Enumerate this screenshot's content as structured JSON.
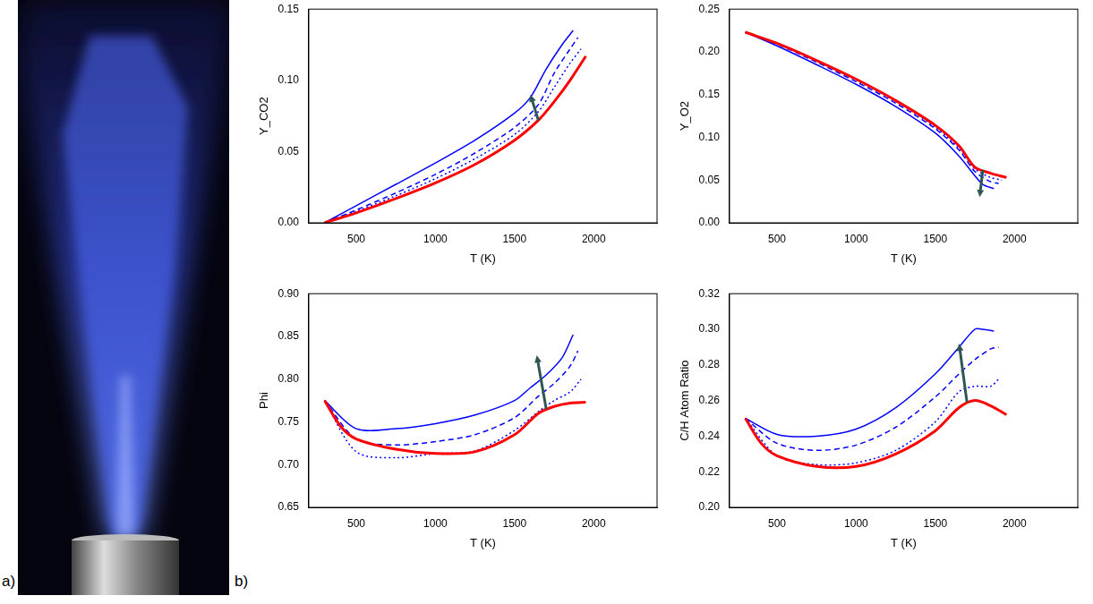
{
  "panel_labels": [
    "a)",
    "b)"
  ],
  "chart_data": [
    {
      "type": "line",
      "x_label": "T (K)",
      "y_label": "Y_CO2",
      "xlim": [
        200,
        2400
      ],
      "xticks": [
        500,
        1000,
        1500,
        2000
      ],
      "ylim": [
        0,
        0.15
      ],
      "yticks": [
        {
          "value": 0,
          "label": "0.00"
        },
        {
          "value": 0.05,
          "label": "0.05"
        },
        {
          "value": 0.1,
          "label": "0.10"
        },
        {
          "value": 0.15,
          "label": "0.15"
        }
      ],
      "grid": false,
      "series": [
        {
          "color": "#ff0000",
          "line_style": "solid",
          "x": [
            300,
            500,
            750,
            1000,
            1250,
            1500,
            1650,
            1750,
            1850,
            1950
          ],
          "values": [
            0.0,
            0.007,
            0.017,
            0.028,
            0.041,
            0.058,
            0.072,
            0.085,
            0.1,
            0.117
          ]
        },
        {
          "color": "#0000ff",
          "line_style": "solid",
          "x": [
            300,
            500,
            750,
            1000,
            1250,
            1500,
            1600,
            1700,
            1800,
            1870
          ],
          "values": [
            0.0,
            0.012,
            0.027,
            0.042,
            0.058,
            0.077,
            0.088,
            0.108,
            0.125,
            0.135
          ]
        },
        {
          "color": "#0000ff",
          "line_style": "dashed",
          "x": [
            300,
            500,
            750,
            1000,
            1250,
            1500,
            1650,
            1750,
            1850,
            1900
          ],
          "values": [
            0.0,
            0.009,
            0.021,
            0.034,
            0.049,
            0.067,
            0.083,
            0.105,
            0.122,
            0.13
          ]
        },
        {
          "color": "#0000ff",
          "line_style": "dotted",
          "x": [
            300,
            500,
            750,
            1000,
            1250,
            1500,
            1650,
            1750,
            1850,
            1920
          ],
          "values": [
            0.0,
            0.008,
            0.019,
            0.031,
            0.045,
            0.062,
            0.078,
            0.095,
            0.112,
            0.122
          ]
        }
      ],
      "arrow": {
        "from": [
          1650,
          0.072
        ],
        "to": [
          1600,
          0.09
        ]
      }
    },
    {
      "type": "line",
      "x_label": "T (K)",
      "y_label": "Y_O2",
      "xlim": [
        200,
        2400
      ],
      "xticks": [
        500,
        1000,
        1500,
        2000
      ],
      "ylim": [
        0,
        0.25
      ],
      "yticks": [
        {
          "value": 0,
          "label": "0.00"
        },
        {
          "value": 0.05,
          "label": "0.05"
        },
        {
          "value": 0.1,
          "label": "0.10"
        },
        {
          "value": 0.15,
          "label": "0.15"
        },
        {
          "value": 0.2,
          "label": "0.20"
        },
        {
          "value": 0.25,
          "label": "0.25"
        }
      ],
      "grid": false,
      "series": [
        {
          "color": "#ff0000",
          "line_style": "solid",
          "x": [
            300,
            500,
            750,
            1000,
            1250,
            1500,
            1650,
            1750,
            1850,
            1950
          ],
          "values": [
            0.223,
            0.21,
            0.19,
            0.168,
            0.143,
            0.114,
            0.09,
            0.065,
            0.058,
            0.053
          ]
        },
        {
          "color": "#0000ff",
          "line_style": "solid",
          "x": [
            300,
            500,
            750,
            1000,
            1250,
            1500,
            1650,
            1750,
            1800,
            1870
          ],
          "values": [
            0.223,
            0.207,
            0.185,
            0.162,
            0.136,
            0.105,
            0.078,
            0.055,
            0.045,
            0.04
          ]
        },
        {
          "color": "#0000ff",
          "line_style": "dashed",
          "x": [
            300,
            500,
            750,
            1000,
            1250,
            1500,
            1650,
            1750,
            1850,
            1900
          ],
          "values": [
            0.223,
            0.209,
            0.188,
            0.165,
            0.14,
            0.11,
            0.085,
            0.06,
            0.048,
            0.046
          ]
        },
        {
          "color": "#0000ff",
          "line_style": "dotted",
          "x": [
            300,
            500,
            750,
            1000,
            1250,
            1500,
            1650,
            1750,
            1850,
            1920
          ],
          "values": [
            0.223,
            0.21,
            0.19,
            0.167,
            0.142,
            0.112,
            0.087,
            0.063,
            0.053,
            0.05
          ]
        }
      ],
      "arrow": {
        "from": [
          1800,
          0.062
        ],
        "to": [
          1780,
          0.03
        ]
      }
    },
    {
      "type": "line",
      "x_label": "T (K)",
      "y_label": "Phi",
      "xlim": [
        200,
        2400
      ],
      "xticks": [
        500,
        1000,
        1500,
        2000
      ],
      "ylim": [
        0.65,
        0.9
      ],
      "yticks": [
        {
          "value": 0.65,
          "label": "0.65"
        },
        {
          "value": 0.7,
          "label": "0.70"
        },
        {
          "value": 0.75,
          "label": "0.75"
        },
        {
          "value": 0.8,
          "label": "0.80"
        },
        {
          "value": 0.85,
          "label": "0.85"
        },
        {
          "value": 0.9,
          "label": "0.90"
        }
      ],
      "grid": false,
      "series": [
        {
          "color": "#ff0000",
          "line_style": "solid",
          "x": [
            300,
            400,
            500,
            750,
            1000,
            1250,
            1500,
            1650,
            1750,
            1850,
            1950
          ],
          "values": [
            0.775,
            0.745,
            0.73,
            0.718,
            0.713,
            0.715,
            0.735,
            0.76,
            0.768,
            0.772,
            0.773
          ]
        },
        {
          "color": "#0000ff",
          "line_style": "solid",
          "x": [
            300,
            500,
            750,
            1000,
            1250,
            1500,
            1600,
            1700,
            1800,
            1870
          ],
          "values": [
            0.775,
            0.742,
            0.742,
            0.748,
            0.758,
            0.775,
            0.79,
            0.805,
            0.825,
            0.852
          ]
        },
        {
          "color": "#0000ff",
          "line_style": "dashed",
          "x": [
            300,
            500,
            750,
            1000,
            1250,
            1500,
            1650,
            1750,
            1850,
            1900
          ],
          "values": [
            0.775,
            0.73,
            0.723,
            0.727,
            0.735,
            0.755,
            0.78,
            0.795,
            0.815,
            0.833
          ]
        },
        {
          "color": "#0000ff",
          "line_style": "dotted",
          "x": [
            300,
            500,
            750,
            1000,
            1250,
            1500,
            1650,
            1750,
            1850,
            1920
          ],
          "values": [
            0.775,
            0.715,
            0.708,
            0.713,
            0.716,
            0.74,
            0.762,
            0.775,
            0.785,
            0.8
          ]
        }
      ],
      "arrow": {
        "from": [
          1700,
          0.765
        ],
        "to": [
          1640,
          0.828
        ]
      }
    },
    {
      "type": "line",
      "x_label": "T (K)",
      "y_label": "C/H Atom Ratio",
      "xlim": [
        200,
        2400
      ],
      "xticks": [
        500,
        1000,
        1500,
        2000
      ],
      "ylim": [
        0.2,
        0.32
      ],
      "yticks": [
        {
          "value": 0.2,
          "label": "0.20"
        },
        {
          "value": 0.22,
          "label": "0.22"
        },
        {
          "value": 0.24,
          "label": "0.24"
        },
        {
          "value": 0.26,
          "label": "0.26"
        },
        {
          "value": 0.28,
          "label": "0.28"
        },
        {
          "value": 0.3,
          "label": "0.30"
        },
        {
          "value": 0.32,
          "label": "0.32"
        }
      ],
      "grid": false,
      "series": [
        {
          "color": "#ff0000",
          "line_style": "solid",
          "x": [
            300,
            400,
            500,
            750,
            1000,
            1250,
            1500,
            1650,
            1750,
            1850,
            1950
          ],
          "values": [
            0.25,
            0.236,
            0.229,
            0.223,
            0.223,
            0.23,
            0.243,
            0.256,
            0.26,
            0.257,
            0.252
          ]
        },
        {
          "color": "#0000ff",
          "line_style": "solid",
          "x": [
            300,
            500,
            750,
            1000,
            1250,
            1500,
            1650,
            1750,
            1800,
            1870
          ],
          "values": [
            0.25,
            0.241,
            0.24,
            0.244,
            0.256,
            0.275,
            0.29,
            0.3,
            0.3,
            0.299
          ]
        },
        {
          "color": "#0000ff",
          "line_style": "dashed",
          "x": [
            300,
            500,
            750,
            1000,
            1250,
            1500,
            1650,
            1750,
            1850,
            1900
          ],
          "values": [
            0.25,
            0.236,
            0.232,
            0.235,
            0.245,
            0.262,
            0.275,
            0.283,
            0.289,
            0.29
          ]
        },
        {
          "color": "#0000ff",
          "line_style": "dotted",
          "x": [
            300,
            500,
            750,
            1000,
            1250,
            1500,
            1650,
            1750,
            1850,
            1900
          ],
          "values": [
            0.25,
            0.229,
            0.224,
            0.225,
            0.232,
            0.248,
            0.265,
            0.268,
            0.268,
            0.272
          ]
        }
      ],
      "arrow": {
        "from": [
          1700,
          0.259
        ],
        "to": [
          1650,
          0.292
        ]
      }
    }
  ]
}
